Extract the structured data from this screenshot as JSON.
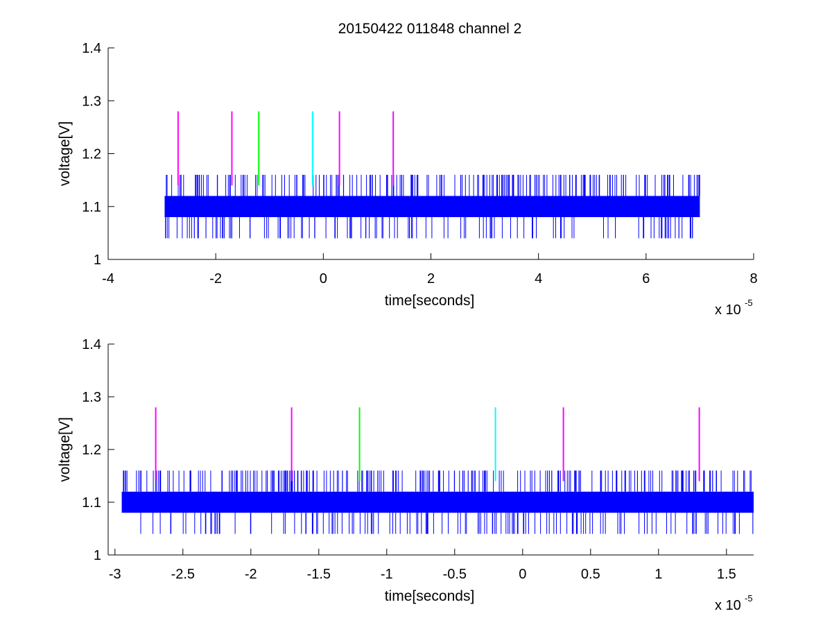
{
  "figure": {
    "title": "20150422 011848 channel 2",
    "background": "#ffffff"
  },
  "colors": {
    "trace": "#0000ff",
    "magenta": "#ff00ff",
    "green": "#00ff00",
    "cyan": "#00ffff",
    "axis": "#000000"
  },
  "chart_data": [
    {
      "type": "line",
      "title": "20150422 011848 channel 2",
      "xlabel": "time[seconds]",
      "ylabel": "voltage[V]",
      "x_multiplier": {
        "base": "x 10",
        "exponent": "-5"
      },
      "xlim": [
        -4,
        8
      ],
      "ylim": [
        1,
        1.4
      ],
      "xticks": [
        -4,
        -2,
        0,
        2,
        4,
        6,
        8
      ],
      "xtick_labels": [
        "-4",
        "-2",
        "0",
        "2",
        "4",
        "6",
        "8"
      ],
      "yticks": [
        1,
        1.1,
        1.2,
        1.3,
        1.4
      ],
      "ytick_labels": [
        "1",
        "1.1",
        "1.2",
        "1.3",
        "1.4"
      ],
      "grid": false,
      "series": [
        {
          "kind": "noise-band",
          "x_range": [
            -2.95,
            7.0
          ],
          "band_levels": [
            1.08,
            1.12
          ],
          "spike_high": 1.16,
          "spike_low": 1.04
        }
      ],
      "markers": [
        {
          "x": -2.7,
          "y_range": [
            1.14,
            1.28
          ],
          "color": "magenta"
        },
        {
          "x": -1.7,
          "y_range": [
            1.14,
            1.28
          ],
          "color": "magenta"
        },
        {
          "x": -1.2,
          "y_range": [
            1.14,
            1.28
          ],
          "color": "green"
        },
        {
          "x": -0.2,
          "y_range": [
            1.14,
            1.28
          ],
          "color": "cyan"
        },
        {
          "x": 0.3,
          "y_range": [
            1.14,
            1.28
          ],
          "color": "magenta"
        },
        {
          "x": 1.3,
          "y_range": [
            1.14,
            1.28
          ],
          "color": "magenta"
        }
      ]
    },
    {
      "type": "line",
      "title": "",
      "xlabel": "time[seconds]",
      "ylabel": "voltage[V]",
      "x_multiplier": {
        "base": "x 10",
        "exponent": "-5"
      },
      "xlim": [
        -3.05,
        1.7
      ],
      "ylim": [
        1,
        1.4
      ],
      "xticks": [
        -3,
        -2.5,
        -2,
        -1.5,
        -1,
        -0.5,
        0,
        0.5,
        1,
        1.5
      ],
      "xtick_labels": [
        "-3",
        "-2.5",
        "-2",
        "-1.5",
        "-1",
        "-0.5",
        "0",
        "0.5",
        "1",
        "1.5"
      ],
      "yticks": [
        1,
        1.1,
        1.2,
        1.3,
        1.4
      ],
      "ytick_labels": [
        "1",
        "1.1",
        "1.2",
        "1.3",
        "1.4"
      ],
      "grid": false,
      "series": [
        {
          "kind": "noise-band",
          "x_range": [
            -2.95,
            1.7
          ],
          "band_levels": [
            1.08,
            1.12
          ],
          "spike_high": 1.16,
          "spike_low": 1.04
        }
      ],
      "markers": [
        {
          "x": -2.7,
          "y_range": [
            1.14,
            1.28
          ],
          "color": "magenta"
        },
        {
          "x": -1.7,
          "y_range": [
            1.14,
            1.28
          ],
          "color": "magenta"
        },
        {
          "x": -1.2,
          "y_range": [
            1.14,
            1.28
          ],
          "color": "green"
        },
        {
          "x": -0.2,
          "y_range": [
            1.14,
            1.28
          ],
          "color": "cyan"
        },
        {
          "x": 0.3,
          "y_range": [
            1.14,
            1.28
          ],
          "color": "magenta"
        },
        {
          "x": 1.3,
          "y_range": [
            1.14,
            1.28
          ],
          "color": "magenta"
        }
      ]
    }
  ]
}
